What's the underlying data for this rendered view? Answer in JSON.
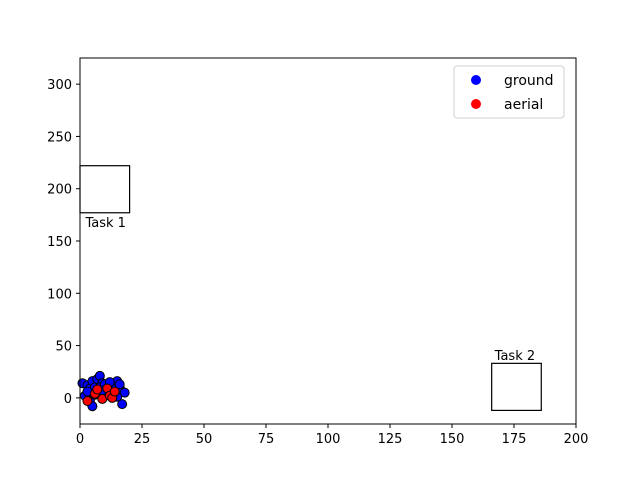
{
  "chart_data": {
    "type": "scatter",
    "title": "",
    "xlabel": "",
    "ylabel": "",
    "xlim": [
      0,
      200
    ],
    "ylim": [
      -25,
      325
    ],
    "x_ticks": [
      0,
      25,
      50,
      75,
      100,
      125,
      150,
      175,
      200
    ],
    "y_ticks": [
      0,
      50,
      100,
      150,
      200,
      250,
      300
    ],
    "grid": false,
    "legend_position": "top-right",
    "series": [
      {
        "name": "ground",
        "color": "#0000ff",
        "points": [
          [
            1,
            14
          ],
          [
            3,
            12
          ],
          [
            4,
            9
          ],
          [
            5,
            16
          ],
          [
            6,
            10
          ],
          [
            7,
            18
          ],
          [
            8,
            21
          ],
          [
            9,
            14
          ],
          [
            10,
            5
          ],
          [
            2,
            2
          ],
          [
            4,
            -3
          ],
          [
            5,
            -8
          ],
          [
            6,
            3
          ],
          [
            8,
            10
          ],
          [
            10,
            13
          ],
          [
            11,
            8
          ],
          [
            13,
            6
          ],
          [
            14,
            12
          ],
          [
            15,
            16
          ],
          [
            16,
            10
          ],
          [
            17,
            6
          ],
          [
            18,
            5
          ],
          [
            17,
            -6
          ],
          [
            15,
            1
          ],
          [
            12,
            15
          ],
          [
            3,
            6
          ],
          [
            9,
            7
          ],
          [
            16,
            13
          ]
        ]
      },
      {
        "name": "aerial",
        "color": "#ff0000",
        "points": [
          [
            3,
            -3
          ],
          [
            6,
            4
          ],
          [
            9,
            -1
          ],
          [
            11,
            9
          ],
          [
            12,
            2
          ],
          [
            13,
            0
          ],
          [
            14,
            6
          ],
          [
            7,
            8
          ]
        ]
      }
    ],
    "annotations": [
      {
        "label": "Task 1",
        "box_x": [
          0,
          20
        ],
        "box_y": [
          177,
          222
        ],
        "label_anchor": [
          1,
          168
        ]
      },
      {
        "label": "Task 2",
        "box_x": [
          166,
          186
        ],
        "box_y": [
          -12,
          33
        ],
        "label_anchor": [
          166,
          41
        ]
      }
    ],
    "edge_color": "#000000"
  }
}
